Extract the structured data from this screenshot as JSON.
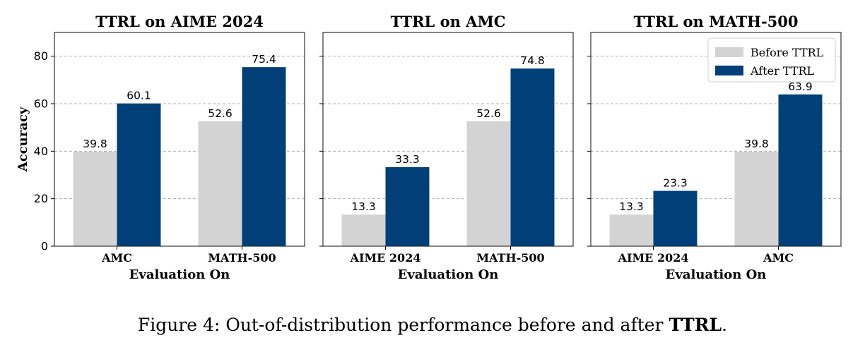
{
  "caption": {
    "prefix": "Figure 4: Out-of-distribution performance before and after ",
    "bold": "TTRL",
    "suffix": "."
  },
  "colors": {
    "before": "#d3d3d3",
    "after": "#003f77",
    "grid": "#b0b0b0"
  },
  "legend": {
    "placement": "top-right of third panel",
    "entries": [
      "Before TTRL",
      "After TTRL"
    ]
  },
  "chart_data": [
    {
      "type": "bar",
      "title": "TTRL on AIME 2024",
      "xlabel": "Evaluation On",
      "ylabel": "Accuracy",
      "ylim": [
        0,
        90
      ],
      "yticks": [
        0,
        20,
        40,
        60,
        80
      ],
      "grid": true,
      "categories": [
        "AMC",
        "MATH-500"
      ],
      "series": [
        {
          "name": "Before TTRL",
          "values": [
            39.8,
            52.6
          ]
        },
        {
          "name": "After TTRL",
          "values": [
            60.1,
            75.4
          ]
        }
      ]
    },
    {
      "type": "bar",
      "title": "TTRL on AMC",
      "xlabel": "Evaluation On",
      "ylabel": "",
      "ylim": [
        0,
        90
      ],
      "yticks": [
        0,
        20,
        40,
        60,
        80
      ],
      "grid": true,
      "categories": [
        "AIME 2024",
        "MATH-500"
      ],
      "series": [
        {
          "name": "Before TTRL",
          "values": [
            13.3,
            52.6
          ]
        },
        {
          "name": "After TTRL",
          "values": [
            33.3,
            74.8
          ]
        }
      ]
    },
    {
      "type": "bar",
      "title": "TTRL on MATH-500",
      "xlabel": "Evaluation On",
      "ylabel": "",
      "ylim": [
        0,
        90
      ],
      "yticks": [
        0,
        20,
        40,
        60,
        80
      ],
      "grid": true,
      "categories": [
        "AIME 2024",
        "AMC"
      ],
      "series": [
        {
          "name": "Before TTRL",
          "values": [
            13.3,
            39.8
          ]
        },
        {
          "name": "After TTRL",
          "values": [
            23.3,
            63.9
          ]
        }
      ]
    }
  ]
}
